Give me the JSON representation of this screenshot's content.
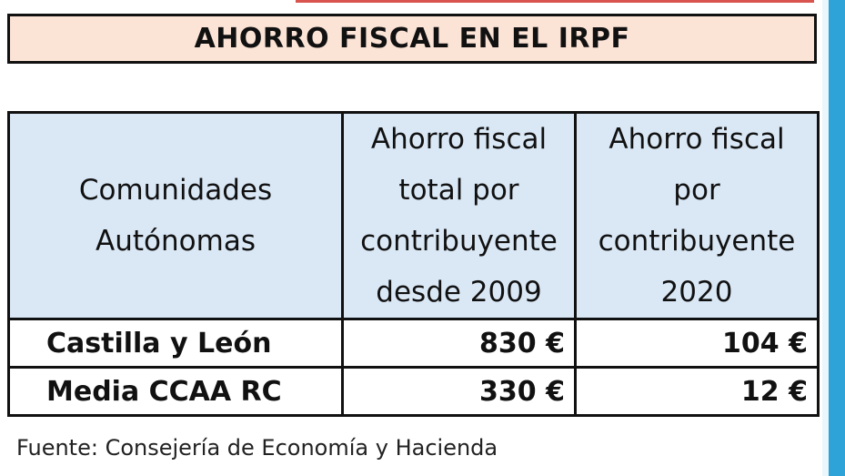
{
  "title": "AHORRO FISCAL EN EL IRPF",
  "table": {
    "headers": [
      "Comunidades Autónomas",
      "Ahorro fiscal total por contribuyente desde 2009",
      "Ahorro fiscal por contribuyente 2020"
    ],
    "rows": [
      {
        "region": "Castilla y León",
        "total_since_2009": "830 €",
        "year_2020": "104 €"
      },
      {
        "region": "Media CCAA RC",
        "total_since_2009": "330 €",
        "year_2020": "12 €"
      }
    ]
  },
  "source": "Fuente: Consejería de Economía y Hacienda",
  "colors": {
    "title_background": "#fbe3d6",
    "header_background": "#dae8f6",
    "border": "#111111",
    "side_accent": "#2ea3d8"
  }
}
